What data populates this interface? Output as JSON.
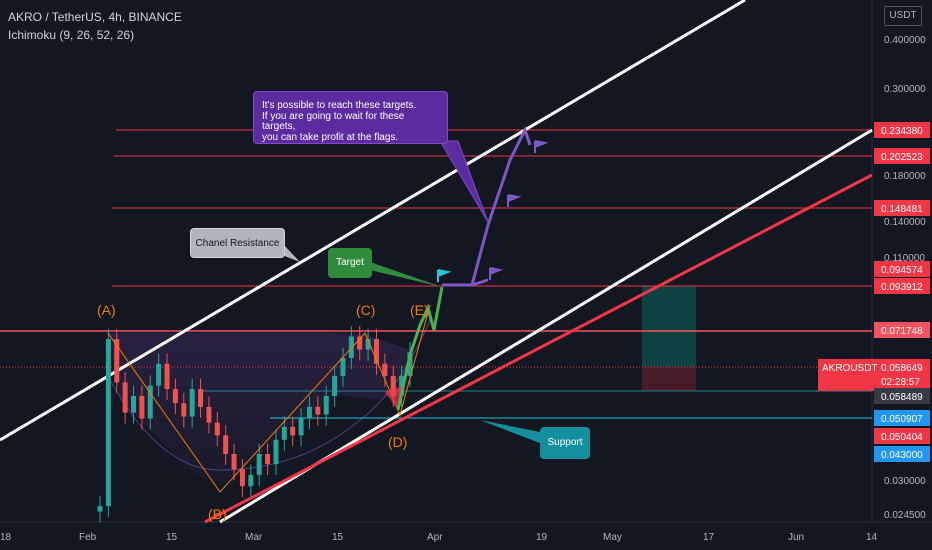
{
  "header": {
    "title": "AKRO / TetherUS, 4h, BINANCE",
    "indicator": "Ichimoku (9, 26, 52, 26)"
  },
  "currency_label": "USDT",
  "chart_data": {
    "type": "line",
    "symbol": "AKROUSDT",
    "y_scale": "log",
    "ylim": [
      0.0245,
      0.47
    ],
    "y_ticks": [
      "0.400000",
      "0.300000",
      "0.180000",
      "0.140000",
      "0.110000",
      "0.030000",
      "0.024500"
    ],
    "x_ticks": [
      "18",
      "Feb",
      "15",
      "Mar",
      "15",
      "Apr",
      "19",
      "May",
      "17",
      "Jun",
      "14"
    ],
    "price_levels": [
      {
        "value": "0.234380",
        "color": "#f23645"
      },
      {
        "value": "0.202523",
        "color": "#f23645"
      },
      {
        "value": "0.148481",
        "color": "#f23645"
      },
      {
        "value": "0.094574",
        "color": "#f23645"
      },
      {
        "value": "0.093912",
        "color": "#f23645"
      },
      {
        "value": "0.071748",
        "color": "#f7525f"
      },
      {
        "value": "0.058489",
        "color": "#787b86"
      },
      {
        "value": "0.050907",
        "color": "#2196f3"
      },
      {
        "value": "0.050404",
        "color": "#f23645"
      },
      {
        "value": "0.043000",
        "color": "#2196f3"
      }
    ],
    "current_price": {
      "symbol": "AKROUSDT",
      "value": "0.058649",
      "countdown": "02:28:57",
      "color": "#f23645"
    },
    "pattern_points": [
      "(A)",
      "(B)",
      "(C)",
      "(D)",
      "(E)"
    ],
    "annotations": {
      "targets_note": [
        "It's possible to reach these targets.",
        "If you are going to wait for these targets,",
        "you can take profit at the flags."
      ],
      "chanel_resistance": "Chanel Resistance",
      "target": "Target",
      "support": "Support"
    },
    "candles_note": "price series approx",
    "price_series": [
      [
        0.026,
        0.0268
      ],
      [
        0.0268,
        0.069
      ],
      [
        0.069,
        0.054
      ],
      [
        0.054,
        0.0455
      ],
      [
        0.0455,
        0.05
      ],
      [
        0.05,
        0.044
      ],
      [
        0.044,
        0.053
      ],
      [
        0.053,
        0.06
      ],
      [
        0.06,
        0.052
      ],
      [
        0.052,
        0.048
      ],
      [
        0.048,
        0.0445
      ],
      [
        0.0445,
        0.052
      ],
      [
        0.052,
        0.047
      ],
      [
        0.047,
        0.043
      ],
      [
        0.043,
        0.04
      ],
      [
        0.04,
        0.036
      ],
      [
        0.036,
        0.033
      ],
      [
        0.033,
        0.03
      ],
      [
        0.03,
        0.032
      ],
      [
        0.032,
        0.036
      ],
      [
        0.036,
        0.034
      ],
      [
        0.034,
        0.039
      ],
      [
        0.039,
        0.042
      ],
      [
        0.042,
        0.04
      ],
      [
        0.04,
        0.044
      ],
      [
        0.044,
        0.047
      ],
      [
        0.047,
        0.045
      ],
      [
        0.045,
        0.05
      ],
      [
        0.05,
        0.056
      ],
      [
        0.056,
        0.062
      ],
      [
        0.062,
        0.07
      ],
      [
        0.07,
        0.065
      ],
      [
        0.065,
        0.069
      ],
      [
        0.069,
        0.06
      ],
      [
        0.06,
        0.056
      ],
      [
        0.056,
        0.05
      ],
      [
        0.05,
        0.056
      ],
      [
        0.056,
        0.064
      ]
    ]
  }
}
